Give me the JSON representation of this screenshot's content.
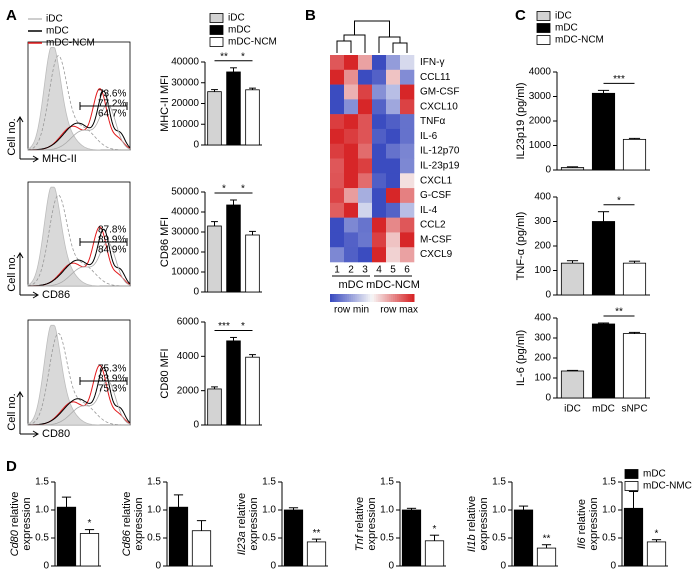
{
  "panel_labels": [
    "A",
    "B",
    "C",
    "D"
  ],
  "chart_data": [
    {
      "type": "flow",
      "ylabel": "Cell no.",
      "xlabel": "MHC-II",
      "values": [
        73.6,
        77.2,
        64.7
      ],
      "value_labels": [
        "73.6%",
        "77.2%",
        "64.7%"
      ],
      "label_colors": [
        "#e31a1c",
        "#000000",
        "#8c8c8c"
      ],
      "legend": {
        "entries": [
          {
            "name": "iDC",
            "color": "#bdbdbd"
          },
          {
            "name": "mDC",
            "color": "#000000"
          },
          {
            "name": "mDC-NCM",
            "color": "#e31a1c"
          }
        ]
      }
    },
    {
      "type": "flow",
      "ylabel": "Cell no.",
      "xlabel": "CD86",
      "values": [
        87.8,
        89.9,
        84.9
      ],
      "value_labels": [
        "87.8%",
        "89.9%",
        "84.9%"
      ],
      "label_colors": [
        "#e31a1c",
        "#000000",
        "#8c8c8c"
      ]
    },
    {
      "type": "flow",
      "ylabel": "Cell no.",
      "xlabel": "CD80",
      "values": [
        75.3,
        83.9,
        75.3
      ],
      "value_labels": [
        "75.3%",
        "83.9%",
        "75.3%"
      ],
      "label_colors": [
        "#e31a1c",
        "#000000",
        "#8c8c8c"
      ]
    },
    {
      "type": "bar",
      "ylabel": "MHC-II MFI",
      "values": [
        25700,
        35200,
        26600
      ],
      "errors": [
        1000,
        2000,
        800
      ],
      "colors": [
        "#d3d3d3",
        "#000000",
        "#ffffff"
      ],
      "ylim": [
        0,
        40000
      ],
      "yticks": [
        0,
        10000,
        20000,
        30000,
        40000
      ],
      "significance": [
        {
          "label": "**",
          "bars": [
            0,
            1
          ]
        },
        {
          "label": "*",
          "bars": [
            1,
            2
          ]
        }
      ],
      "legend": {
        "entries": [
          {
            "name": "iDC",
            "color": "#d3d3d3"
          },
          {
            "name": "mDC",
            "color": "#000000"
          },
          {
            "name": "mDC-NCM",
            "color": "#ffffff"
          }
        ]
      }
    },
    {
      "type": "bar",
      "ylabel": "CD86 MFI",
      "values": [
        33000,
        43500,
        28500
      ],
      "errors": [
        2200,
        2500,
        1800
      ],
      "colors": [
        "#d3d3d3",
        "#000000",
        "#ffffff"
      ],
      "ylim": [
        0,
        50000
      ],
      "yticks": [
        0,
        10000,
        20000,
        30000,
        40000,
        50000
      ],
      "significance": [
        {
          "label": "*",
          "bars": [
            0,
            1
          ]
        },
        {
          "label": "*",
          "bars": [
            1,
            2
          ]
        }
      ]
    },
    {
      "type": "bar",
      "ylabel": "CD80 MFI",
      "values": [
        2100,
        4900,
        3950
      ],
      "errors": [
        120,
        200,
        150
      ],
      "colors": [
        "#d3d3d3",
        "#000000",
        "#ffffff"
      ],
      "ylim": [
        0,
        6000
      ],
      "yticks": [
        0,
        2000,
        4000,
        6000
      ],
      "significance": [
        {
          "label": "***",
          "bars": [
            0,
            1
          ]
        },
        {
          "label": "*",
          "bars": [
            1,
            2
          ]
        }
      ]
    },
    {
      "type": "heatmap",
      "rows": [
        "IFN-γ",
        "CCL11",
        "GM-CSF",
        "CXCL10",
        "TNFα",
        "IL-6",
        "IL-12p70",
        "IL-23p19",
        "CXCL1",
        "G-CSF",
        "IL-4",
        "CCL2",
        "M-CSF",
        "CXCL9"
      ],
      "columns": [
        "1",
        "2",
        "3",
        "4",
        "5",
        "6"
      ],
      "groups": [
        "mDC",
        "mDC-NCM"
      ],
      "scale_labels": [
        "row min",
        "row max"
      ],
      "values": [
        [
          0.6,
          0.8,
          0.3,
          -0.9,
          -0.5,
          -0.2
        ],
        [
          0.9,
          0.5,
          -0.7,
          -0.6,
          0.3,
          -0.4
        ],
        [
          -0.8,
          0.2,
          0.6,
          -0.5,
          -0.3,
          0.7
        ],
        [
          -0.6,
          -0.3,
          0.9,
          -0.5,
          -0.2,
          0.8
        ],
        [
          0.8,
          0.9,
          0.7,
          -0.9,
          -0.8,
          -0.7
        ],
        [
          0.9,
          0.8,
          0.7,
          -0.8,
          -0.9,
          -0.7
        ],
        [
          0.8,
          0.9,
          0.6,
          -0.9,
          -0.7,
          -0.6
        ],
        [
          0.7,
          0.9,
          0.8,
          -0.8,
          -0.8,
          -0.5
        ],
        [
          0.7,
          0.9,
          0.6,
          -0.8,
          -0.9,
          0.1
        ],
        [
          0.5,
          0.2,
          -0.4,
          -0.8,
          0.6,
          0.3
        ],
        [
          0.6,
          0.8,
          -0.1,
          -0.7,
          -0.6,
          -0.2
        ],
        [
          -0.8,
          -0.5,
          -0.6,
          0.9,
          0.5,
          0.7
        ],
        [
          -0.7,
          -0.6,
          -0.5,
          0.8,
          0.3,
          0.9
        ],
        [
          -0.5,
          -0.7,
          -0.8,
          0.9,
          0.2,
          0.4
        ]
      ]
    },
    {
      "type": "bar",
      "ylabel": "IL23p19 (pg/ml)",
      "values": [
        100,
        3130,
        1250
      ],
      "errors": [
        30,
        120,
        40
      ],
      "colors": [
        "#d3d3d3",
        "#000000",
        "#ffffff"
      ],
      "ylim": [
        0,
        4000
      ],
      "yticks": [
        0,
        1000,
        2000,
        3000,
        4000
      ],
      "significance": [
        {
          "label": "***",
          "bars": [
            1,
            2
          ]
        }
      ],
      "legend": {
        "entries": [
          {
            "name": "iDC",
            "color": "#d3d3d3"
          },
          {
            "name": "mDC",
            "color": "#000000"
          },
          {
            "name": "mDC-NCM",
            "color": "#ffffff"
          }
        ]
      }
    },
    {
      "type": "bar",
      "ylabel": "TNF-α (pg/ml)",
      "values": [
        130,
        300,
        130
      ],
      "errors": [
        10,
        40,
        8
      ],
      "colors": [
        "#d3d3d3",
        "#000000",
        "#ffffff"
      ],
      "ylim": [
        0,
        400
      ],
      "yticks": [
        0,
        100,
        200,
        300,
        400
      ],
      "significance": [
        {
          "label": "*",
          "bars": [
            1,
            2
          ]
        }
      ]
    },
    {
      "type": "bar",
      "ylabel": "IL-6 (pg/ml)",
      "categories": [
        "iDC",
        "mDC",
        "sNPC"
      ],
      "values": [
        135,
        370,
        322
      ],
      "errors": [
        3,
        5,
        6
      ],
      "colors": [
        "#d3d3d3",
        "#000000",
        "#ffffff"
      ],
      "ylim": [
        0,
        400
      ],
      "yticks": [
        0,
        100,
        200,
        300,
        400
      ],
      "significance": [
        {
          "label": "**",
          "bars": [
            1,
            2
          ]
        }
      ]
    },
    {
      "type": "bar",
      "gene": "Cd80",
      "ylabel_lines": [
        "relative",
        "expression"
      ],
      "values": [
        1.05,
        0.58
      ],
      "errors": [
        0.18,
        0.07
      ],
      "colors": [
        "#000000",
        "#ffffff"
      ],
      "ylim": [
        0,
        1.5
      ],
      "yticks": [
        0,
        0.5,
        {
          "value": 1,
          "label": "1.0"
        },
        1.5
      ],
      "significance": [
        {
          "label": "*",
          "bars": [
            1
          ]
        }
      ]
    },
    {
      "type": "bar",
      "gene": "Cd86",
      "ylabel_lines": [
        "relative",
        "expression"
      ],
      "values": [
        1.05,
        0.63
      ],
      "errors": [
        0.22,
        0.18
      ],
      "colors": [
        "#000000",
        "#ffffff"
      ],
      "ylim": [
        0,
        1.5
      ],
      "yticks": [
        0,
        0.5,
        {
          "value": 1,
          "label": "1.0"
        },
        1.5
      ],
      "significance": []
    },
    {
      "type": "bar",
      "gene": "Il23a",
      "ylabel_lines": [
        "relative",
        "expression"
      ],
      "values": [
        1.0,
        0.43
      ],
      "errors": [
        0.04,
        0.05
      ],
      "colors": [
        "#000000",
        "#ffffff"
      ],
      "ylim": [
        0,
        1.5
      ],
      "yticks": [
        0,
        0.5,
        {
          "value": 1,
          "label": "1.0"
        },
        1.5
      ],
      "significance": [
        {
          "label": "**",
          "bars": [
            1
          ]
        }
      ]
    },
    {
      "type": "bar",
      "gene": "Tnf",
      "ylabel_lines": [
        "relative",
        "expression"
      ],
      "values": [
        1.0,
        0.45
      ],
      "errors": [
        0.03,
        0.1
      ],
      "colors": [
        "#000000",
        "#ffffff"
      ],
      "ylim": [
        0,
        1.5
      ],
      "yticks": [
        0,
        0.5,
        {
          "value": 1,
          "label": "1.0"
        },
        1.5
      ],
      "significance": [
        {
          "label": "*",
          "bars": [
            1
          ]
        }
      ]
    },
    {
      "type": "bar",
      "gene": "Il1b",
      "ylabel_lines": [
        "relative",
        "expression"
      ],
      "values": [
        1.0,
        0.32
      ],
      "errors": [
        0.07,
        0.06
      ],
      "colors": [
        "#000000",
        "#ffffff"
      ],
      "ylim": [
        0,
        1.5
      ],
      "yticks": [
        0,
        0.5,
        {
          "value": 1,
          "label": "1.0"
        },
        1.5
      ],
      "significance": [
        {
          "label": "**",
          "bars": [
            1
          ]
        }
      ]
    },
    {
      "type": "bar",
      "gene": "Il6",
      "ylabel_lines": [
        "relative",
        "expression"
      ],
      "values": [
        1.03,
        0.43
      ],
      "errors": [
        0.3,
        0.04
      ],
      "colors": [
        "#000000",
        "#ffffff"
      ],
      "ylim": [
        0,
        1.5
      ],
      "yticks": [
        0,
        0.5,
        {
          "value": 1,
          "label": "1.0"
        },
        1.5
      ],
      "significance": [
        {
          "label": "*",
          "bars": [
            1
          ]
        }
      ],
      "legend": {
        "entries": [
          {
            "name": "mDC",
            "color": "#000000"
          },
          {
            "name": "mDC-NMC",
            "color": "#ffffff"
          }
        ]
      }
    }
  ]
}
